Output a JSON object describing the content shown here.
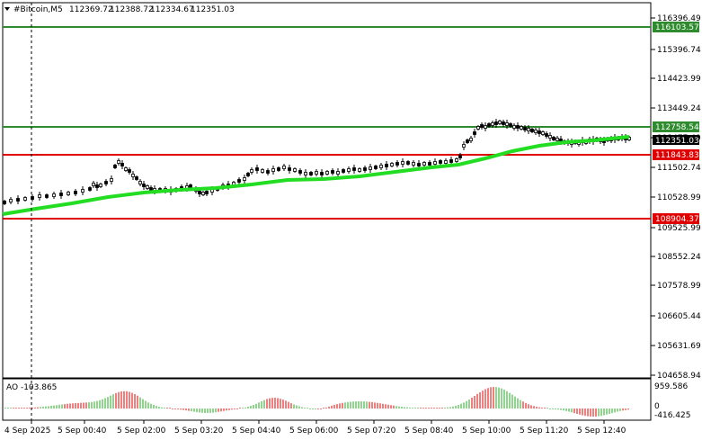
{
  "chart": {
    "symbol_line": "#Bitcoin,M5",
    "ohlc": [
      "112369.72",
      "112388.72",
      "112334.67",
      "112351.03"
    ],
    "current_price_label": "112351.03",
    "price_scale": [
      "116396.49",
      "115396.74",
      "114423.99",
      "113449.24",
      "112477.49",
      "111502.74",
      "110528.99",
      "109525.99",
      "108552.24",
      "107578.99",
      "106605.44",
      "105631.69",
      "104658.94"
    ],
    "levels": [
      {
        "label": "116103.57",
        "color": "#2e8b2e",
        "kind": "green"
      },
      {
        "label": "112758.54",
        "color": "#2e8b2e",
        "kind": "green"
      },
      {
        "label": "111843.83",
        "color": "#e00000",
        "kind": "red"
      },
      {
        "label": "108904.37",
        "color": "#e00000",
        "kind": "red"
      }
    ],
    "time_axis": [
      "4 Sep 2025",
      "5 Sep 00:40",
      "5 Sep 02:00",
      "5 Sep 03:20",
      "5 Sep 04:40",
      "5 Sep 06:00",
      "5 Sep 07:20",
      "5 Sep 08:40",
      "5 Sep 10:00",
      "5 Sep 11:20",
      "5 Sep 12:40"
    ],
    "ma_color": "#22dd22"
  },
  "indicator": {
    "label": "AO -103.865",
    "scale_top": "959.586",
    "scale_zero": "0",
    "scale_bottom": "-416.425",
    "up_color": "#22aa22",
    "down_color": "#dd0000"
  },
  "arrows": [
    "arrow-down-icon"
  ]
}
